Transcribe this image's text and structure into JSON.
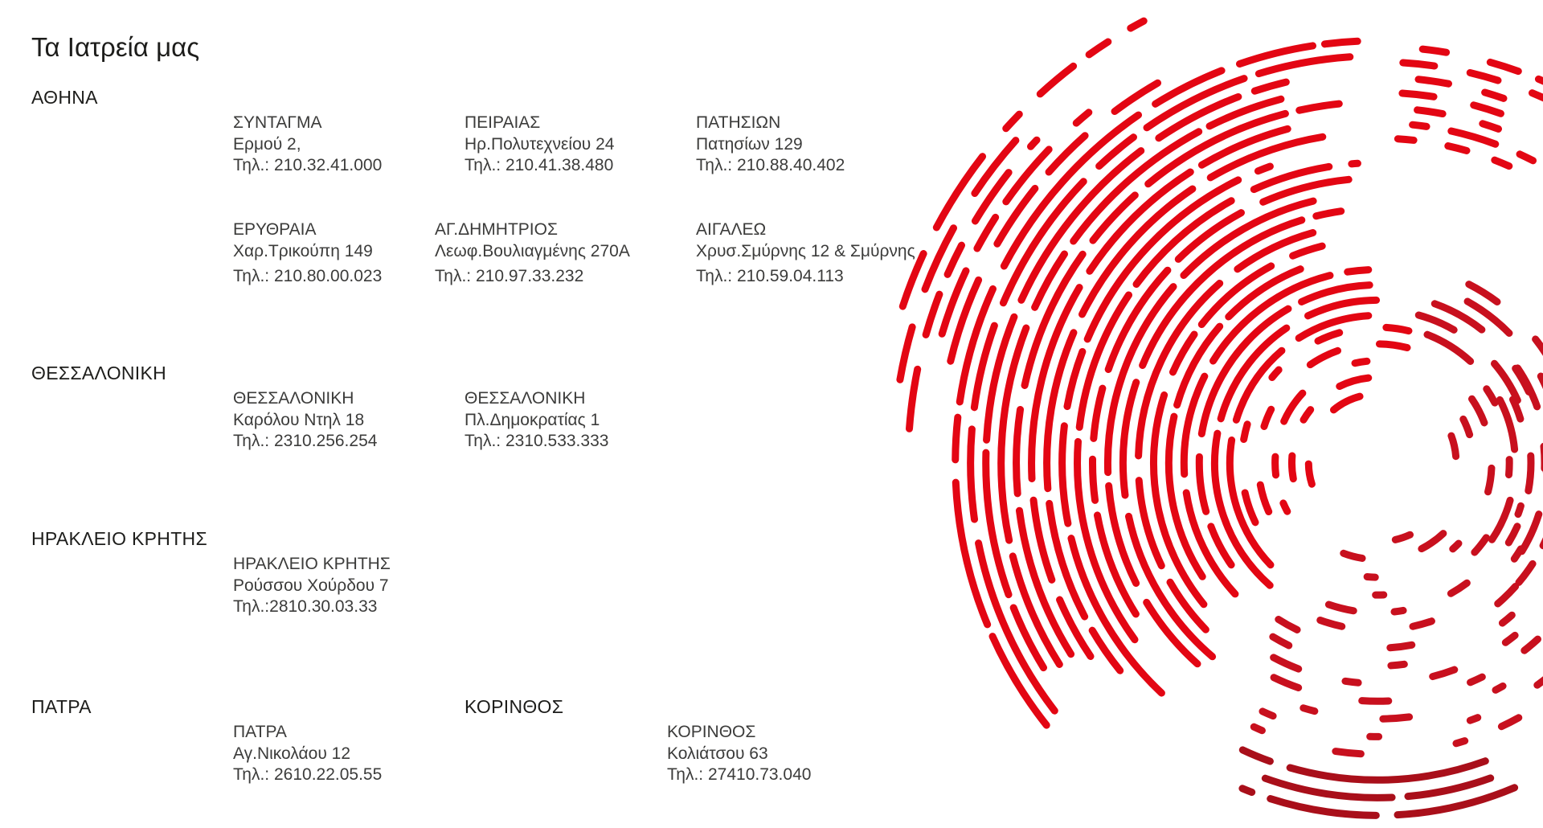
{
  "page": {
    "title": "Τα Ιατρεία μας"
  },
  "regions": [
    {
      "name": "ΑΘΗΝΑ",
      "clinics": [
        {
          "name": "ΣΥΝΤΑΓΜΑ",
          "address": "Ερμού 2,",
          "phone": "Τηλ.: 210.32.41.000"
        },
        {
          "name": "ΠΕΙΡΑΙΑΣ",
          "address": "Ηρ.Πολυτεχνείου 24",
          "phone": "Τηλ.: 210.41.38.480"
        },
        {
          "name": "ΠΑΤΗΣΙΩΝ",
          "address": "Πατησίων 129",
          "phone": "Τηλ.: 210.88.40.402"
        },
        {
          "name": "ΕΡΥΘΡΑΙΑ",
          "address": "Χαρ.Τρικούπη 149",
          "phone": "Τηλ.: 210.80.00.023"
        },
        {
          "name": "ΑΓ.ΔΗΜΗΤΡΙΟΣ",
          "address": "Λεωφ.Βουλιαγμένης 270Α",
          "phone": "Τηλ.: 210.97.33.232"
        },
        {
          "name": "ΑΙΓΑΛΕΩ",
          "address": "Χρυσ.Σμύρνης 12 & Σμύρνης",
          "phone": "Τηλ.: 210.59.04.113"
        }
      ]
    },
    {
      "name": "ΘΕΣΣΑΛΟΝΙΚΗ",
      "clinics": [
        {
          "name": "ΘΕΣΣΑΛΟΝΙΚΗ",
          "address": "Καρόλου Ντηλ 18",
          "phone": "Τηλ.: 2310.256.254"
        },
        {
          "name": "ΘΕΣΣΑΛΟΝΙΚΗ",
          "address": "Πλ.Δημοκρατίας 1",
          "phone": "Τηλ.: 2310.533.333"
        }
      ]
    },
    {
      "name": "ΗΡΑΚΛΕΙΟ ΚΡΗΤΗΣ",
      "clinics": [
        {
          "name": "ΗΡΑΚΛΕΙΟ ΚΡΗΤΗΣ",
          "address": "Ρούσσου Χούρδου 7",
          "phone": "Τηλ.:2810.30.03.33"
        }
      ]
    },
    {
      "name": "ΠΑΤΡΑ",
      "clinics": [
        {
          "name": "ΠΑΤΡΑ",
          "address": "Αγ.Νικολάου 12",
          "phone": "Τηλ.: 2610.22.05.55"
        }
      ]
    },
    {
      "name": "ΚΟΡΙΝΘΟΣ",
      "clinics": [
        {
          "name": "ΚΟΡΙΝΘΟΣ",
          "address": "Κολιάτσου 63",
          "phone": "Τηλ.: 27410.73.040"
        }
      ]
    }
  ],
  "colors": {
    "text": "#1d1d1b",
    "accent": "#e30613",
    "accent_dark": "#c8101e",
    "accent_deep": "#a90f1a"
  }
}
